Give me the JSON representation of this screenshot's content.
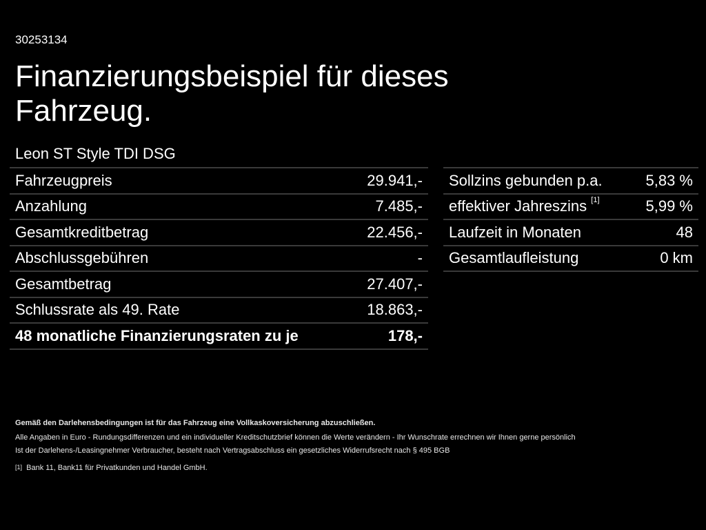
{
  "offer_id": "30253134",
  "title": "Finanzierungsbeispiel für dieses Fahrzeug.",
  "model": "Leon ST Style TDI DSG",
  "left_rows": [
    {
      "label": "Fahrzeugpreis",
      "value": "29.941,-"
    },
    {
      "label": "Anzahlung",
      "value": "7.485,-"
    },
    {
      "label": "Gesamtkreditbetrag",
      "value": "22.456,-"
    },
    {
      "label": "Abschlussgebühren",
      "value": "-"
    },
    {
      "label": "Gesamtbetrag",
      "value": "27.407,-"
    },
    {
      "label": "Schlussrate als 49. Rate",
      "value": "18.863,-"
    },
    {
      "label": "48 monatliche Finanzierungsraten zu je",
      "value": "178,-"
    }
  ],
  "right_rows": [
    {
      "label": "Sollzins gebunden p.a.",
      "value": "5,83 %"
    },
    {
      "label": "effektiver Jahreszins",
      "sup": "[1]",
      "value": "5,99 %"
    },
    {
      "label": "Laufzeit in Monaten",
      "value": "48"
    },
    {
      "label": "Gesamtlaufleistung",
      "value": "0 km"
    }
  ],
  "footer": {
    "insurance": "Gemäß den Darlehensbedingungen ist für das Fahrzeug eine Vollkaskoversicherung abzuschließen.",
    "note1": "Alle Angaben in Euro - Rundungsdifferenzen und ein individueller Kreditschutzbrief können die Werte verändern - Ihr Wunschrate errechnen wir Ihnen gerne persönlich",
    "note2": "Ist der Darlehens-/Leasingnehmer Verbraucher, besteht nach Vertragsabschluss ein gesetzliches Widerrufsrecht nach § 495 BGB",
    "footnote_mark": "[1]",
    "footnote": "Bank 11, Bank11 für Privatkunden und Handel GmbH."
  }
}
